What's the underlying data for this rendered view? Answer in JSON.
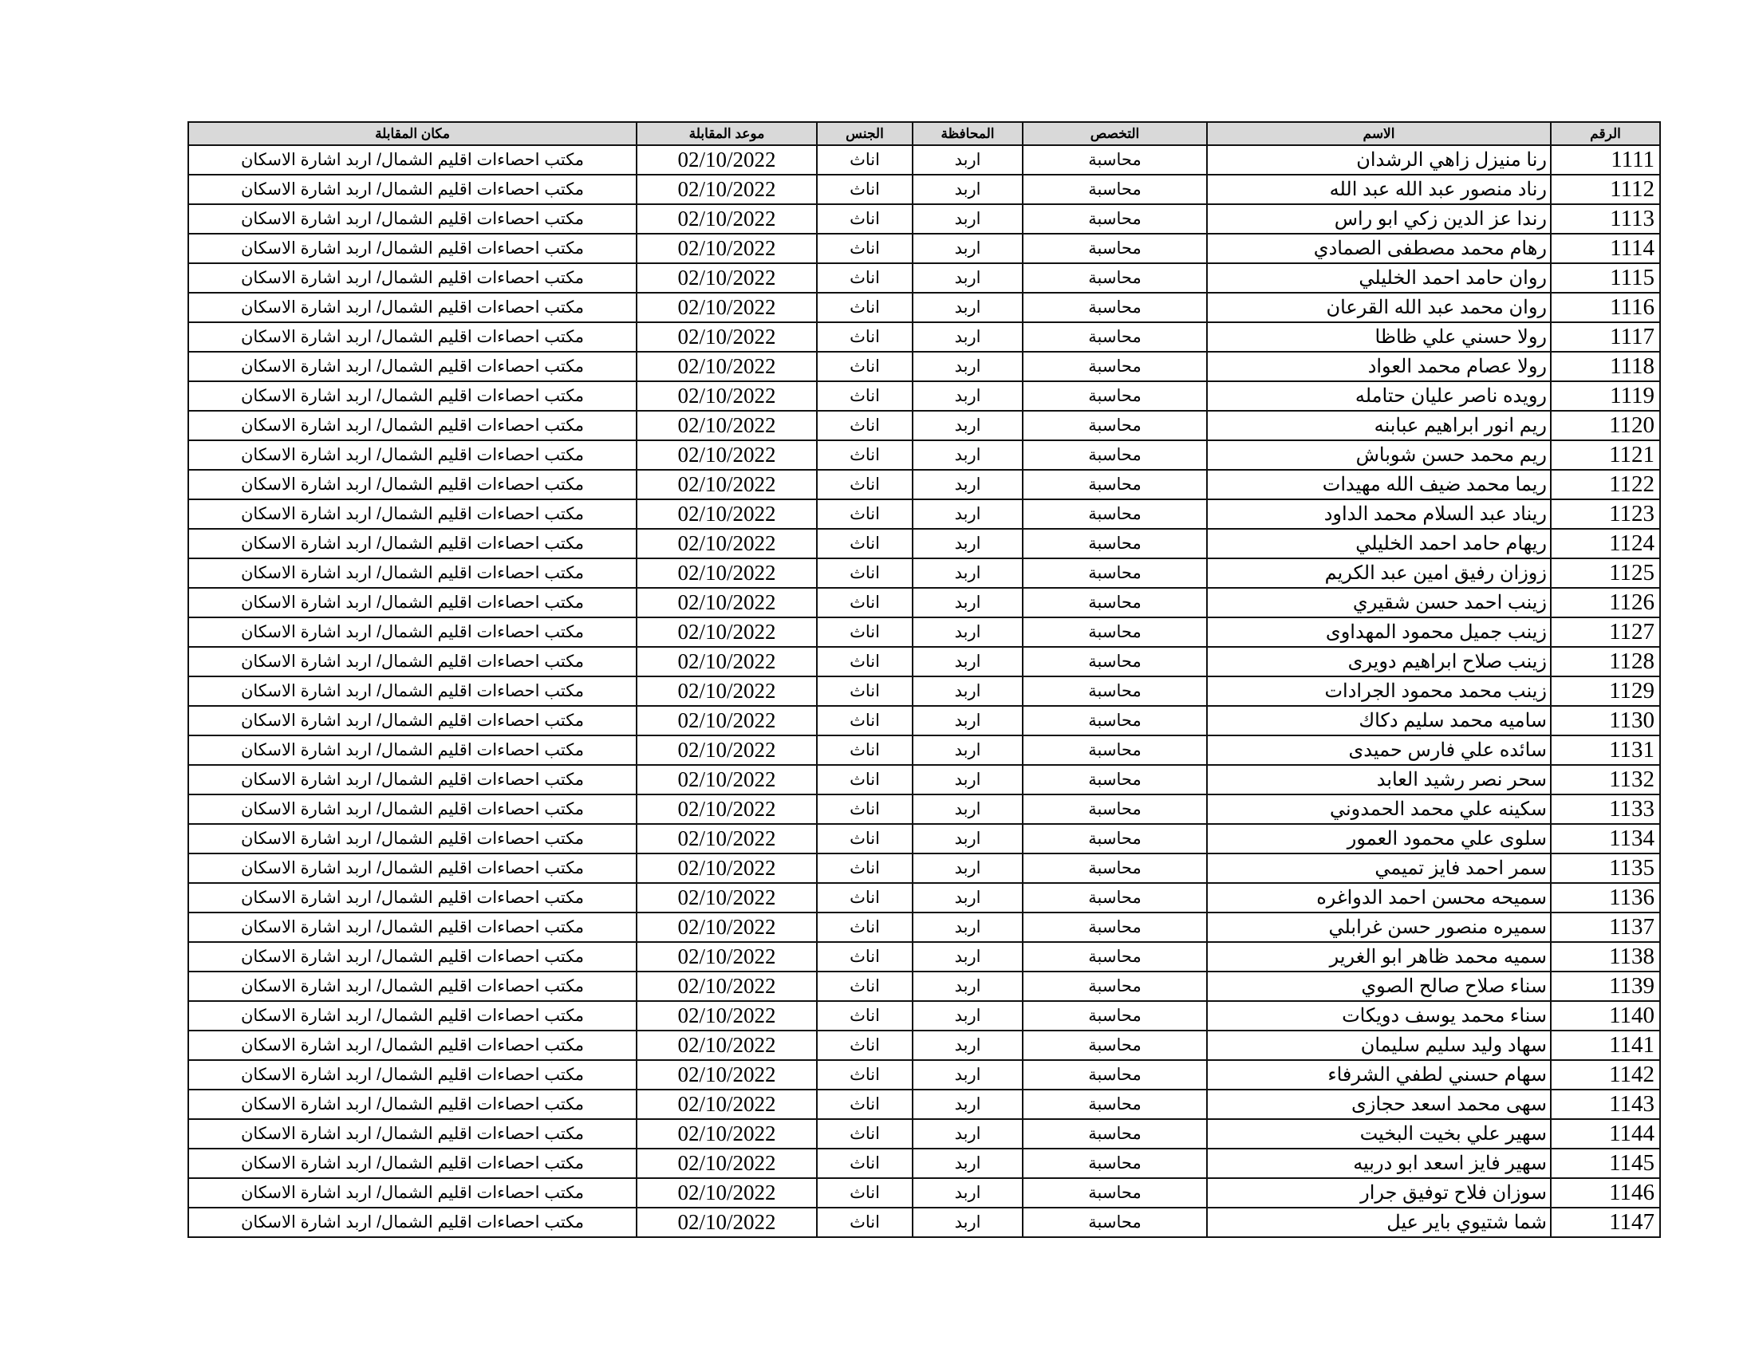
{
  "table": {
    "headers": {
      "location": "مكان المقابلة",
      "date": "موعد المقابلة",
      "gender": "الجنس",
      "governorate": "المحافظة",
      "specialty": "التخصص",
      "name": "الاسم",
      "number": "الرقم"
    },
    "rows": [
      {
        "number": "1111",
        "name": "رنا منيزل زاهي الرشدان"
      },
      {
        "number": "1112",
        "name": "رناد منصور عبد الله عبد الله"
      },
      {
        "number": "1113",
        "name": "رندا عز الدين زكي ابو راس"
      },
      {
        "number": "1114",
        "name": "رهام محمد مصطفى الصمادي"
      },
      {
        "number": "1115",
        "name": "روان حامد احمد الخليلي"
      },
      {
        "number": "1116",
        "name": "روان محمد عبد الله القرعان"
      },
      {
        "number": "1117",
        "name": "رولا حسني علي ظاظا"
      },
      {
        "number": "1118",
        "name": "رولا عصام محمد العواد"
      },
      {
        "number": "1119",
        "name": "رويده ناصر عليان حتامله"
      },
      {
        "number": "1120",
        "name": "ريم انور ابراهيم عبابنه"
      },
      {
        "number": "1121",
        "name": "ريم محمد حسن شوباش"
      },
      {
        "number": "1122",
        "name": "ريما محمد ضيف الله مهيدات"
      },
      {
        "number": "1123",
        "name": "ريناد عبد السلام محمد الداود"
      },
      {
        "number": "1124",
        "name": "ريهام حامد احمد الخليلي"
      },
      {
        "number": "1125",
        "name": "زوزان رفيق امين عبد الكريم"
      },
      {
        "number": "1126",
        "name": "زينب احمد حسن شقيري"
      },
      {
        "number": "1127",
        "name": "زينب جميل محمود المهداوى"
      },
      {
        "number": "1128",
        "name": "زينب صلاح ابراهيم دويرى"
      },
      {
        "number": "1129",
        "name": "زينب محمد محمود الجرادات"
      },
      {
        "number": "1130",
        "name": "ساميه محمد سليم دكاك"
      },
      {
        "number": "1131",
        "name": "سائده علي فارس حميدى"
      },
      {
        "number": "1132",
        "name": "سحر نصر رشيد العابد"
      },
      {
        "number": "1133",
        "name": "سكينه علي محمد الحمدوني"
      },
      {
        "number": "1134",
        "name": "سلوى علي محمود العمور"
      },
      {
        "number": "1135",
        "name": "سمر احمد فايز تميمي"
      },
      {
        "number": "1136",
        "name": "سميحه محسن احمد الدواغره"
      },
      {
        "number": "1137",
        "name": "سميره منصور حسن غرابلي"
      },
      {
        "number": "1138",
        "name": "سميه محمد ظاهر ابو الغرير"
      },
      {
        "number": "1139",
        "name": "سناء صلاح صالح الصوي"
      },
      {
        "number": "1140",
        "name": "سناء محمد يوسف دويكات"
      },
      {
        "number": "1141",
        "name": "سهاد وليد سليم سليمان"
      },
      {
        "number": "1142",
        "name": "سهام حسني لطفي الشرفاء"
      },
      {
        "number": "1143",
        "name": "سهى محمد اسعد حجازى"
      },
      {
        "number": "1144",
        "name": "سهير علي بخيت البخيت"
      },
      {
        "number": "1145",
        "name": "سهير فايز اسعد ابو دربيه"
      },
      {
        "number": "1146",
        "name": "سوزان فلاح توفيق جرار"
      },
      {
        "number": "1147",
        "name": "شما شتيوي باير عيل"
      }
    ],
    "common": {
      "specialty": "محاسبة",
      "governorate": "اربد",
      "gender": "اناث",
      "date": "02/10/2022",
      "location": "مكتب احصاءات اقليم الشمال/ اربد اشارة الاسكان"
    }
  }
}
